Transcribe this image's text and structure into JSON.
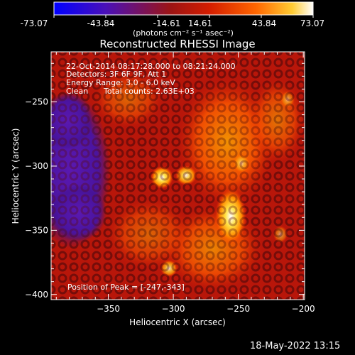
{
  "colorbar": {
    "tick_labels": [
      "-73.07",
      "-43.84",
      "-14.61",
      "14.61",
      "43.84",
      "73.07"
    ],
    "unit_label": "(photons cm⁻² s⁻¹ asec⁻²)",
    "min": -73.07,
    "max": 73.07,
    "stops": [
      "#0000ff",
      "#4a10b8",
      "#9c1414",
      "#d41d00",
      "#ff6600",
      "#ffcc33",
      "#ffffff"
    ]
  },
  "title": "Reconstructed RHESSI Image",
  "annotations": {
    "time_range": "22-Oct-2014 08:17:28.000 to 08:21:24.000",
    "detectors": "Detectors: 3F 6F 9F, Att 1",
    "energy": "Energy Range: 3.0 - 6.0 keV",
    "algo": "Clean",
    "counts": "Total counts: 2.63E+03",
    "peak": "Position of Peak = [-247,-343]"
  },
  "axes": {
    "xlabel": "Heliocentric X (arcsec)",
    "ylabel": "Heliocentric Y (arcsec)",
    "xticks": [
      -350,
      -300,
      -250,
      -200
    ],
    "xtick_labels": [
      "−350",
      "−300",
      "−250",
      "−200"
    ],
    "yticks": [
      -250,
      -300,
      -350,
      -400
    ],
    "ytick_labels": [
      "−250",
      "−300",
      "−350",
      "−400"
    ],
    "xlim": [
      -394,
      -199
    ],
    "ylim": [
      -404,
      -211
    ]
  },
  "footer": {
    "timestamp": "18-May-2022 13:15"
  }
}
